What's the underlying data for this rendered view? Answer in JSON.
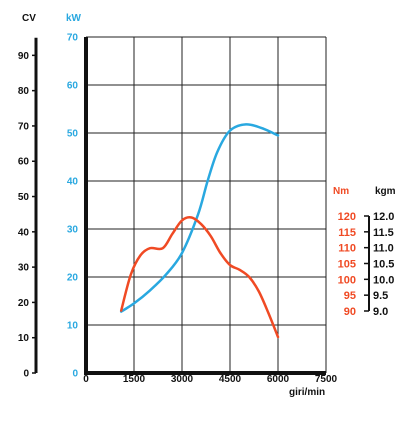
{
  "colors": {
    "power": "#29a8e0",
    "torque": "#f04a24",
    "axis": "#111111",
    "grid": "#222222",
    "background": "#ffffff"
  },
  "chart_data": {
    "type": "line",
    "grid": true,
    "x": {
      "label": "giri/min",
      "range": [
        0,
        7500
      ],
      "ticks": [
        "0",
        "1500",
        "3000",
        "4500",
        "6000",
        "7500"
      ]
    },
    "axes": {
      "cv": {
        "label": "CV",
        "range": [
          0,
          95.2
        ],
        "ticks": [
          "0",
          "10",
          "20",
          "30",
          "40",
          "50",
          "60",
          "70",
          "80",
          "90"
        ]
      },
      "kw": {
        "label": "kW",
        "range": [
          0,
          70
        ],
        "ticks": [
          "0",
          "10",
          "20",
          "30",
          "40",
          "50",
          "60",
          "70"
        ]
      },
      "nm": {
        "label": "Nm",
        "range": [
          90,
          120
        ],
        "ticks": [
          "120",
          "115",
          "110",
          "105",
          "100",
          "95",
          "90"
        ]
      },
      "kgm": {
        "label": "kgm",
        "range": [
          9.0,
          12.0
        ],
        "ticks": [
          "12.0",
          "11.5",
          "11.0",
          "10.5",
          "10.0",
          "9.5",
          "9.0"
        ]
      }
    },
    "series": [
      {
        "axis": "kw",
        "color": "#29a8e0",
        "points": [
          [
            1100,
            12.8
          ],
          [
            1500,
            14.5
          ],
          [
            2000,
            17.2
          ],
          [
            2500,
            20.5
          ],
          [
            3000,
            25.0
          ],
          [
            3500,
            33.0
          ],
          [
            3800,
            40.0
          ],
          [
            4100,
            46.0
          ],
          [
            4500,
            50.5
          ],
          [
            5000,
            51.8
          ],
          [
            5500,
            51.0
          ],
          [
            6000,
            49.5
          ]
        ]
      },
      {
        "axis": "torque",
        "color": "#f04a24",
        "points": [
          [
            1100,
            13.0
          ],
          [
            1400,
            20.5
          ],
          [
            1700,
            24.5
          ],
          [
            2000,
            26.0
          ],
          [
            2400,
            26.0
          ],
          [
            2700,
            29.0
          ],
          [
            3000,
            31.8
          ],
          [
            3300,
            32.4
          ],
          [
            3600,
            31.0
          ],
          [
            3900,
            28.5
          ],
          [
            4200,
            25.0
          ],
          [
            4500,
            22.5
          ],
          [
            4800,
            21.5
          ],
          [
            5100,
            20.0
          ],
          [
            5400,
            17.0
          ],
          [
            5700,
            12.5
          ],
          [
            6000,
            7.5
          ]
        ]
      }
    ]
  }
}
